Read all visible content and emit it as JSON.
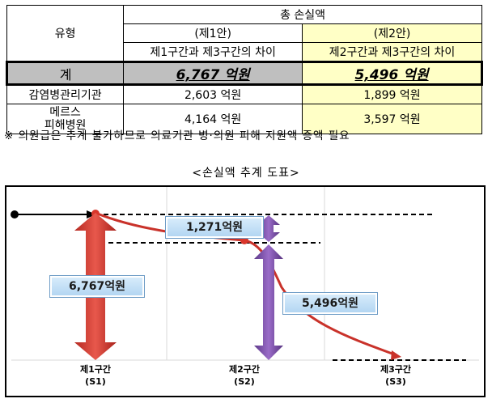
{
  "table": {
    "type_header": "유형",
    "total_loss_header": "총 손실액",
    "plan1_title": "(제1안)",
    "plan1_sub": "제1구간과 제3구간의 차이",
    "plan2_title": "(제2안)",
    "plan2_sub": "제2구간과 제3구간의 차이",
    "rows": [
      {
        "label": "계",
        "plan1": "6,767 억원",
        "plan2": "5,496 억원"
      },
      {
        "label": "감염병관리기관",
        "plan1": "2,603 억원",
        "plan2": "1,899 억원"
      },
      {
        "label_line1": "메르스",
        "label_line2": "피해병원",
        "plan1": "4,164 억원",
        "plan2": "3,597 억원"
      }
    ]
  },
  "note": "※ 의원급은 추계 불가하므로 의료기관 병·의원 피해 지원액 증액 필요",
  "chart_caption": "<손실액 추계 도표>",
  "chart": {
    "labels": {
      "diff_small": "1,271억원",
      "total_plan1": "6,767억원",
      "total_plan2": "5,496억원"
    },
    "x_ticks": [
      {
        "line1": "제1구간",
        "line2": "(S1)"
      },
      {
        "line1": "제2구간",
        "line2": "(S2)"
      },
      {
        "line1": "제3구간",
        "line2": "(S3)"
      }
    ],
    "colors": {
      "red_arrow": "#d9362b",
      "purple_arrow": "#7b4da8",
      "curve": "#c9322a",
      "label_fill": "#c3e0f7"
    }
  }
}
